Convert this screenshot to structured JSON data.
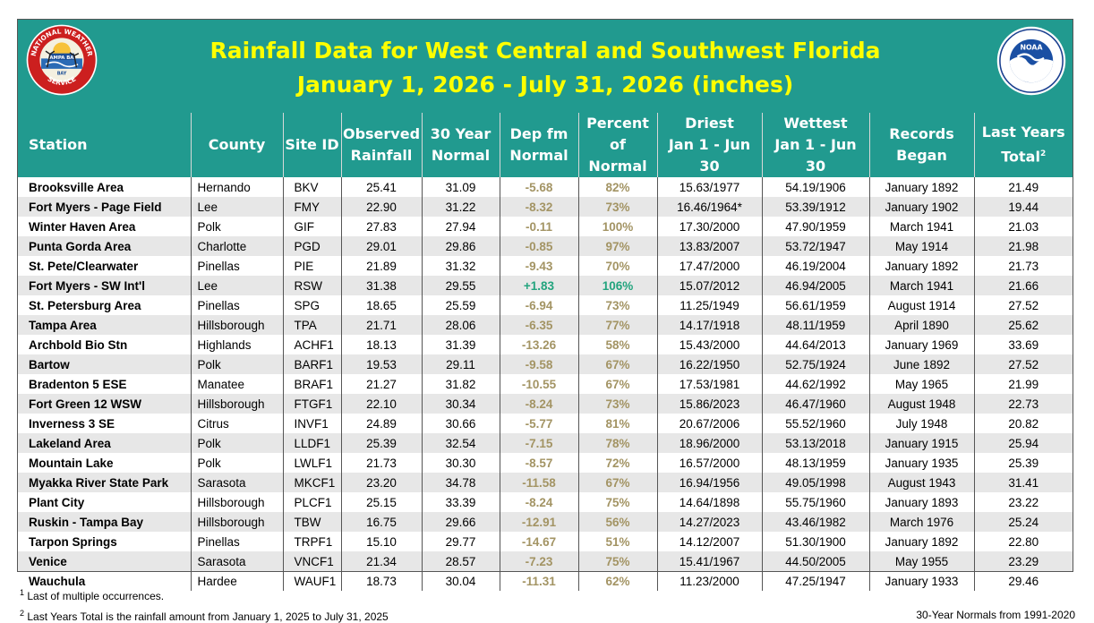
{
  "header": {
    "title_line1": "Rainfall Data for West Central and Southwest Florida",
    "title_line2": "January 1, 2026 - July 31, 2026 (inches)"
  },
  "logos": {
    "nws_text_top": "NATIONAL WEATHER",
    "nws_text_bottom": "SERVICE",
    "nws_office": "TAMPA BAY",
    "noaa_text": "NOAA"
  },
  "colors": {
    "header_bg": "#219a8f",
    "title": "#ffff00",
    "negative": "#a39464",
    "positive": "#23a47e",
    "stripe": "#e7e7e7"
  },
  "columns": {
    "station": "Station",
    "county": "County",
    "site": "Site ID",
    "obs_1": "Observed",
    "obs_2": "Rainfall",
    "norm_1": "30 Year",
    "norm_2": "Normal",
    "dep_1": "Dep fm",
    "dep_2": "Normal",
    "pct_1": "Percent of",
    "pct_2": "Normal",
    "dry_1": "Driest",
    "dry_2": "Jan 1 - Jun 30",
    "wet_1": "Wettest",
    "wet_2": "Jan 1 - Jun 30",
    "rec_1": "Records",
    "rec_2": "Began",
    "last_1": "Last Years",
    "last_2": "Total",
    "last_sup": "2"
  },
  "rows": [
    {
      "station": "Brooksville Area",
      "county": "Hernando",
      "site": "BKV",
      "obs": "25.41",
      "normal": "31.09",
      "dep": "-5.68",
      "pct": "82%",
      "driest": "15.63/1977",
      "wettest": "54.19/1906",
      "began": "January 1892",
      "last": "21.49"
    },
    {
      "station": "Fort Myers - Page Field",
      "county": "Lee",
      "site": "FMY",
      "obs": "22.90",
      "normal": "31.22",
      "dep": "-8.32",
      "pct": "73%",
      "driest": "16.46/1964*",
      "wettest": "53.39/1912",
      "began": "January 1902",
      "last": "19.44"
    },
    {
      "station": "Winter Haven Area",
      "county": "Polk",
      "site": "GIF",
      "obs": "27.83",
      "normal": "27.94",
      "dep": "-0.11",
      "pct": "100%",
      "driest": "17.30/2000",
      "wettest": "47.90/1959",
      "began": "March 1941",
      "last": "21.03"
    },
    {
      "station": "Punta Gorda Area",
      "county": "Charlotte",
      "site": "PGD",
      "obs": "29.01",
      "normal": "29.86",
      "dep": "-0.85",
      "pct": "97%",
      "driest": "13.83/2007",
      "wettest": "53.72/1947",
      "began": "May 1914",
      "last": "21.98"
    },
    {
      "station": "St. Pete/Clearwater",
      "county": "Pinellas",
      "site": "PIE",
      "obs": "21.89",
      "normal": "31.32",
      "dep": "-9.43",
      "pct": "70%",
      "driest": "17.47/2000",
      "wettest": "46.19/2004",
      "began": "January 1892",
      "last": "21.73"
    },
    {
      "station": "Fort Myers - SW Int'l",
      "county": "Lee",
      "site": "RSW",
      "obs": "31.38",
      "normal": "29.55",
      "dep": "+1.83",
      "pct": "106%",
      "driest": "15.07/2012",
      "wettest": "46.94/2005",
      "began": "March 1941",
      "last": "21.66",
      "positive": true
    },
    {
      "station": "St. Petersburg Area",
      "county": "Pinellas",
      "site": "SPG",
      "obs": "18.65",
      "normal": "25.59",
      "dep": "-6.94",
      "pct": "73%",
      "driest": "11.25/1949",
      "wettest": "56.61/1959",
      "began": "August 1914",
      "last": "27.52"
    },
    {
      "station": "Tampa Area",
      "county": "Hillsborough",
      "site": "TPA",
      "obs": "21.71",
      "normal": "28.06",
      "dep": "-6.35",
      "pct": "77%",
      "driest": "14.17/1918",
      "wettest": "48.11/1959",
      "began": "April 1890",
      "last": "25.62"
    },
    {
      "station": "Archbold Bio Stn",
      "county": "Highlands",
      "site": "ACHF1",
      "obs": "18.13",
      "normal": "31.39",
      "dep": "-13.26",
      "pct": "58%",
      "driest": "15.43/2000",
      "wettest": "44.64/2013",
      "began": "January 1969",
      "last": "33.69"
    },
    {
      "station": "Bartow",
      "county": "Polk",
      "site": "BARF1",
      "obs": "19.53",
      "normal": "29.11",
      "dep": "-9.58",
      "pct": "67%",
      "driest": "16.22/1950",
      "wettest": "52.75/1924",
      "began": "June 1892",
      "last": "27.52"
    },
    {
      "station": "Bradenton 5 ESE",
      "county": "Manatee",
      "site": "BRAF1",
      "obs": "21.27",
      "normal": "31.82",
      "dep": "-10.55",
      "pct": "67%",
      "driest": "17.53/1981",
      "wettest": "44.62/1992",
      "began": "May 1965",
      "last": "21.99"
    },
    {
      "station": "Fort Green 12 WSW",
      "county": "Hillsborough",
      "site": "FTGF1",
      "obs": "22.10",
      "normal": "30.34",
      "dep": "-8.24",
      "pct": "73%",
      "driest": "15.86/2023",
      "wettest": "46.47/1960",
      "began": "August 1948",
      "last": "22.73"
    },
    {
      "station": "Inverness 3 SE",
      "county": "Citrus",
      "site": "INVF1",
      "obs": "24.89",
      "normal": "30.66",
      "dep": "-5.77",
      "pct": "81%",
      "driest": "20.67/2006",
      "wettest": "55.52/1960",
      "began": "July 1948",
      "last": "20.82"
    },
    {
      "station": "Lakeland Area",
      "county": "Polk",
      "site": "LLDF1",
      "obs": "25.39",
      "normal": "32.54",
      "dep": "-7.15",
      "pct": "78%",
      "driest": "18.96/2000",
      "wettest": "53.13/2018",
      "began": "January 1915",
      "last": "25.94"
    },
    {
      "station": "Mountain Lake",
      "county": "Polk",
      "site": "LWLF1",
      "obs": "21.73",
      "normal": "30.30",
      "dep": "-8.57",
      "pct": "72%",
      "driest": "16.57/2000",
      "wettest": "48.13/1959",
      "began": "January 1935",
      "last": "25.39"
    },
    {
      "station": "Myakka River State Park",
      "county": "Sarasota",
      "site": "MKCF1",
      "obs": "23.20",
      "normal": "34.78",
      "dep": "-11.58",
      "pct": "67%",
      "driest": "16.94/1956",
      "wettest": "49.05/1998",
      "began": "August 1943",
      "last": "31.41"
    },
    {
      "station": "Plant City",
      "county": "Hillsborough",
      "site": "PLCF1",
      "obs": "25.15",
      "normal": "33.39",
      "dep": "-8.24",
      "pct": "75%",
      "driest": "14.64/1898",
      "wettest": "55.75/1960",
      "began": "January 1893",
      "last": "23.22"
    },
    {
      "station": "Ruskin - Tampa Bay",
      "county": "Hillsborough",
      "site": "TBW",
      "obs": "16.75",
      "normal": "29.66",
      "dep": "-12.91",
      "pct": "56%",
      "driest": "14.27/2023",
      "wettest": "43.46/1982",
      "began": "March 1976",
      "last": "25.24"
    },
    {
      "station": "Tarpon Springs",
      "county": "Pinellas",
      "site": "TRPF1",
      "obs": "15.10",
      "normal": "29.77",
      "dep": "-14.67",
      "pct": "51%",
      "driest": "14.12/2007",
      "wettest": "51.30/1900",
      "began": "January 1892",
      "last": "22.80"
    },
    {
      "station": "Venice",
      "county": "Sarasota",
      "site": "VNCF1",
      "obs": "21.34",
      "normal": "28.57",
      "dep": "-7.23",
      "pct": "75%",
      "driest": "15.41/1967",
      "wettest": "44.50/2005",
      "began": "May 1955",
      "last": "23.29"
    },
    {
      "station": "Wauchula",
      "county": "Hardee",
      "site": "WAUF1",
      "obs": "18.73",
      "normal": "30.04",
      "dep": "-11.31",
      "pct": "62%",
      "driest": "11.23/2000",
      "wettest": "47.25/1947",
      "began": "January 1933",
      "last": "29.46"
    }
  ],
  "footnotes": {
    "note1_sup": "1",
    "note1": " Last of multiple occurrences.",
    "note2_sup": "2",
    "note2": " Last Years Total is the rainfall amount from January 1, 2025 to July 31, 2025",
    "normals": "30-Year Normals from 1991-2020"
  }
}
